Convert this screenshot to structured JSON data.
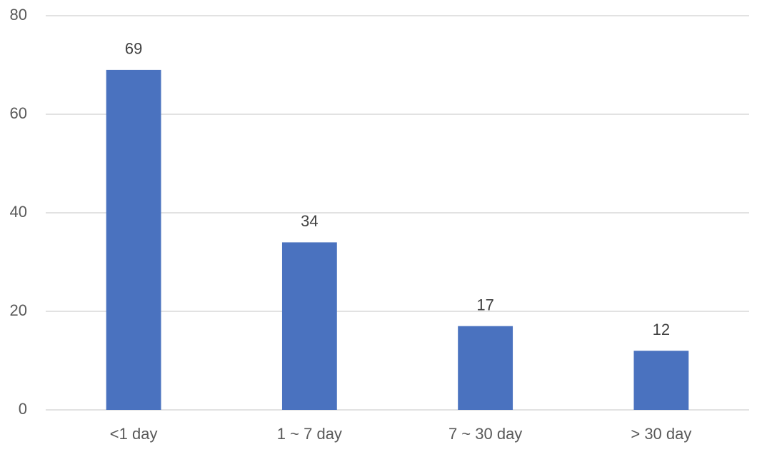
{
  "chart_data": {
    "type": "bar",
    "categories": [
      "<1 day",
      "1 ~ 7 day",
      "7 ~ 30 day",
      "> 30 day"
    ],
    "values": [
      69,
      34,
      17,
      12
    ],
    "color": "#4a72bf",
    "ylim": [
      0,
      80
    ],
    "yticks": [
      0,
      20,
      40,
      60,
      80
    ],
    "grid": true
  }
}
